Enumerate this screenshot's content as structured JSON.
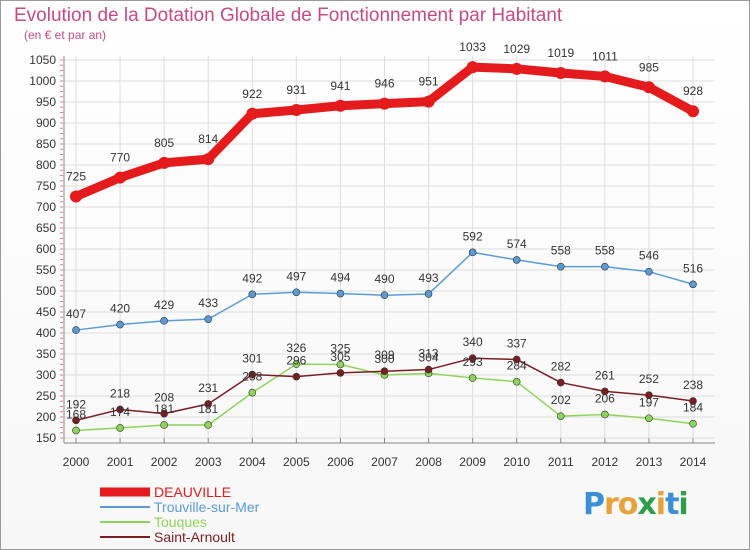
{
  "title": "Evolution de la Dotation Globale de Fonctionnement par Habitant",
  "subtitle": "(en € et par an)",
  "brand": {
    "text": "Proxiti",
    "letter_colors": [
      "#3a8fd6",
      "#e8a23a",
      "#e8a23a",
      "#2e9e4a",
      "#e8a23a",
      "#3a8fd6",
      "#2e9e4a"
    ]
  },
  "chart_data": {
    "type": "line",
    "title": "Evolution de la Dotation Globale de Fonctionnement par Habitant",
    "ylabel": "(en € et par an)",
    "xlabel": "",
    "ylim": [
      150,
      1050
    ],
    "yticks": [
      150,
      200,
      250,
      300,
      350,
      400,
      450,
      500,
      550,
      600,
      650,
      700,
      750,
      800,
      850,
      900,
      950,
      1000,
      1050
    ],
    "categories": [
      "2000",
      "2001",
      "2002",
      "2003",
      "2004",
      "2005",
      "2006",
      "2007",
      "2008",
      "2009",
      "2010",
      "2011",
      "2012",
      "2013",
      "2014"
    ],
    "grid": true,
    "legend_position": "bottom-left",
    "series": [
      {
        "name": "DEAUVILLE",
        "color": "#e41a1c",
        "values": [
          725,
          770,
          805,
          814,
          922,
          931,
          941,
          946,
          951,
          1033,
          1029,
          1019,
          1011,
          985,
          928
        ]
      },
      {
        "name": "Trouville-sur-Mer",
        "color": "#5b9bd5",
        "values": [
          407,
          420,
          429,
          433,
          492,
          497,
          494,
          490,
          493,
          592,
          574,
          558,
          558,
          546,
          516
        ]
      },
      {
        "name": "Touques",
        "color": "#8fd45a",
        "values": [
          168,
          174,
          181,
          181,
          258,
          326,
          325,
          300,
          304,
          293,
          284,
          202,
          206,
          197,
          184
        ]
      },
      {
        "name": "Saint-Arnoult",
        "color": "#7a1e22",
        "values": [
          192,
          218,
          208,
          231,
          301,
          296,
          305,
          309,
          313,
          340,
          337,
          282,
          261,
          252,
          238
        ]
      }
    ]
  }
}
